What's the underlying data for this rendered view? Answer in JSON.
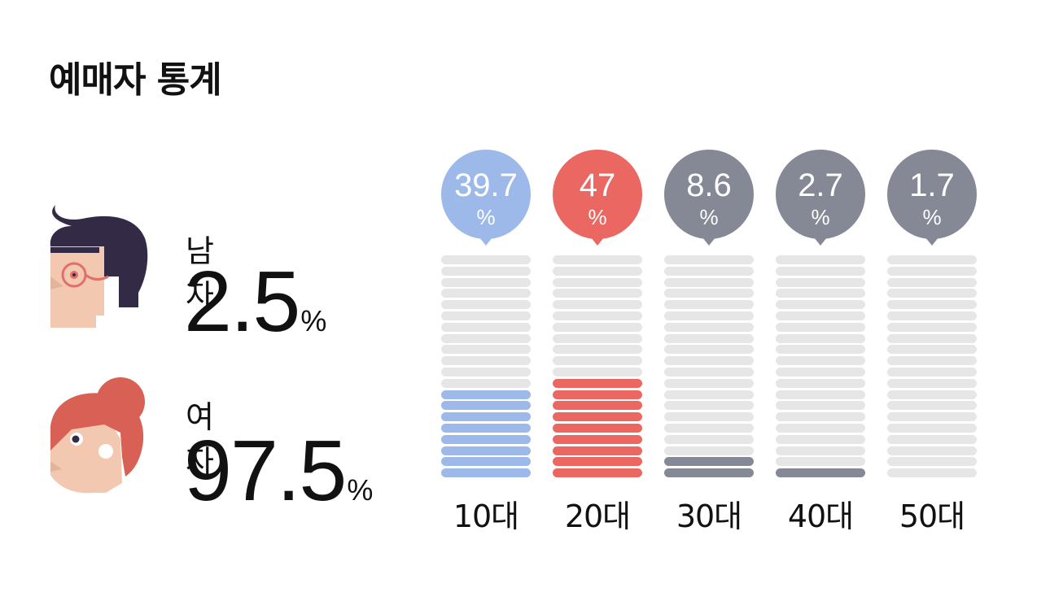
{
  "title": "예매자 통계",
  "gender": {
    "male": {
      "label": "남자",
      "value": "2.5",
      "unit": "%"
    },
    "female": {
      "label": "여자",
      "value": "97.5",
      "unit": "%"
    }
  },
  "colors": {
    "age_10": "#9db9ea",
    "age_20": "#ea6762",
    "other": "#858895",
    "empty": "#e6e6e6"
  },
  "chart_data": {
    "type": "bar",
    "categories": [
      "10대",
      "20대",
      "30대",
      "40대",
      "50대"
    ],
    "values": [
      39.7,
      47,
      8.6,
      2.7,
      1.7
    ],
    "value_labels": [
      "39.7",
      "47",
      "8.6",
      "2.7",
      "1.7"
    ],
    "unit": "%",
    "ylim": [
      0,
      100
    ],
    "segments_per_column": 20
  }
}
